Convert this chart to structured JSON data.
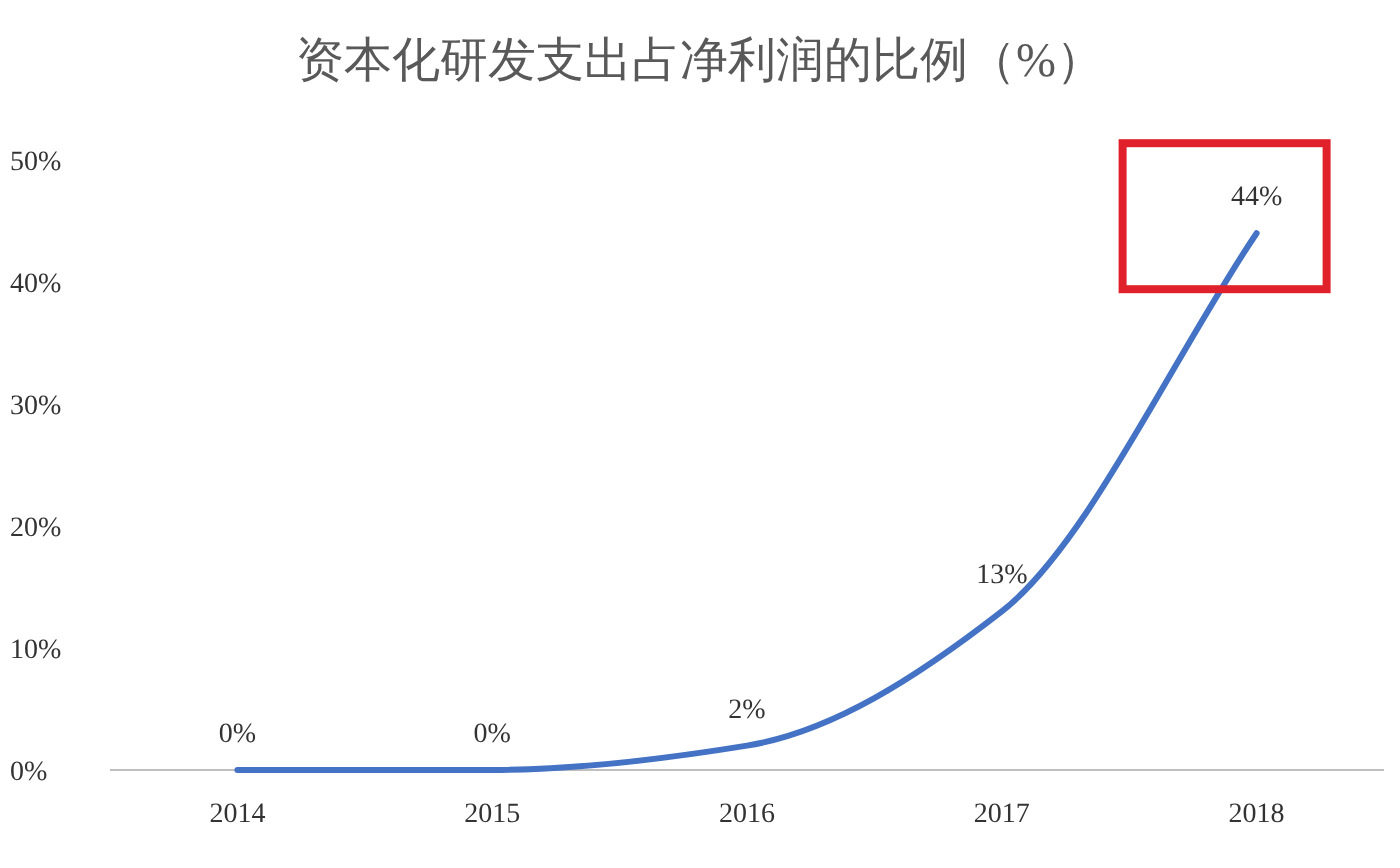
{
  "chart_data": {
    "type": "line",
    "title": "资本化研发支出占净利润的比例（%）",
    "categories": [
      "2014",
      "2015",
      "2016",
      "2017",
      "2018"
    ],
    "series": [
      {
        "color": "#4472c4",
        "values": [
          0,
          0,
          2,
          13,
          44
        ],
        "value_labels": [
          "0%",
          "0%",
          "2%",
          "13%",
          "44%"
        ]
      }
    ],
    "ylim": [
      0,
      50
    ],
    "yticks": [
      {
        "value": 0,
        "label": "0%"
      },
      {
        "value": 10,
        "label": "10%"
      },
      {
        "value": 20,
        "label": "20%"
      },
      {
        "value": 30,
        "label": "30%"
      },
      {
        "value": 40,
        "label": "40%"
      },
      {
        "value": 50,
        "label": "50%"
      }
    ],
    "marker": "none",
    "line_style": "solid"
  }
}
